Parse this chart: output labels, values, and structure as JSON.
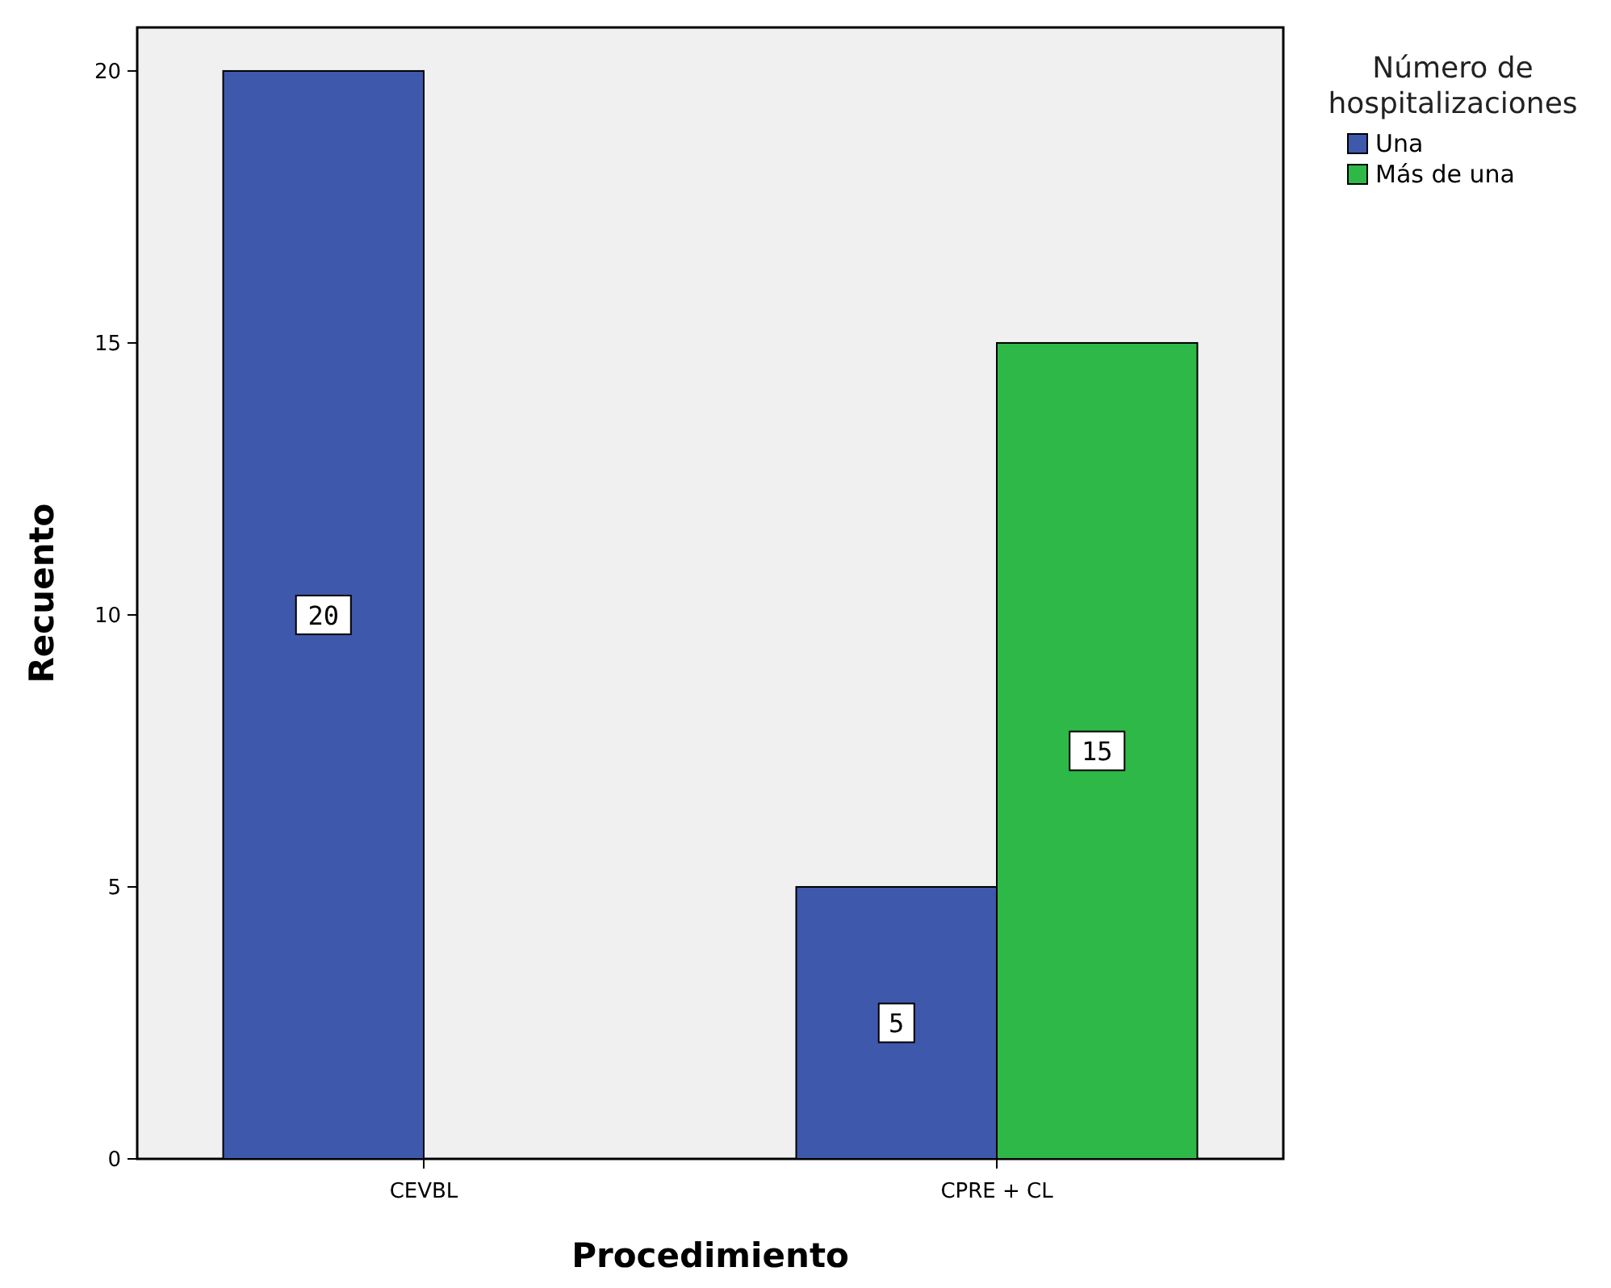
{
  "chart_data": {
    "type": "bar",
    "xlabel": "Procedimiento",
    "ylabel": "Recuento",
    "legend_title": "Número de hospitalizaciones",
    "categories": [
      "CEVBL",
      "CPRE + CL"
    ],
    "series": [
      {
        "name": "Una",
        "color": "#3e58ac",
        "values": [
          20,
          5
        ]
      },
      {
        "name": "Más de una",
        "color": "#2eb848",
        "values": [
          null,
          15
        ]
      }
    ],
    "ylim": [
      0,
      20.8
    ],
    "yticks": [
      0,
      5,
      10,
      15,
      20
    ],
    "data_labels": true,
    "legend": "top right",
    "grid": false
  }
}
